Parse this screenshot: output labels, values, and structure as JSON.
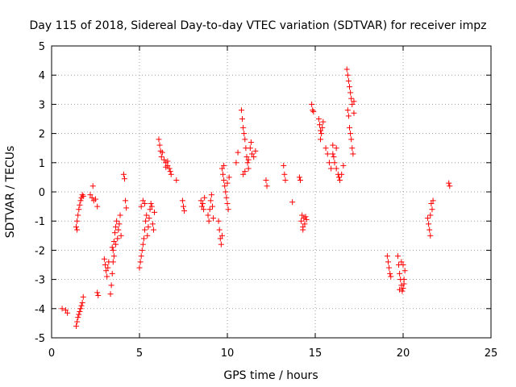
{
  "chart_data": {
    "type": "scatter",
    "title": "Day 115 of 2018, Sidereal Day-to-day VTEC variation (SDTVAR) for receiver impz",
    "xlabel": "GPS time / hours",
    "ylabel": "SDTVAR / TECUs",
    "xlim": [
      0,
      25
    ],
    "ylim": [
      -5,
      5
    ],
    "xticks": [
      "0",
      "5",
      "10",
      "15",
      "20",
      "25"
    ],
    "yticks": [
      "-5",
      "-4",
      "-3",
      "-2",
      "-1",
      "0",
      "1",
      "2",
      "3",
      "4",
      "5"
    ],
    "grid": true,
    "marker": "plus",
    "color": "#ff0000",
    "series": [
      {
        "name": "SDTVAR",
        "points": [
          [
            0.6,
            -4.0
          ],
          [
            0.8,
            -4.05
          ],
          [
            0.9,
            -4.15
          ],
          [
            1.4,
            -4.6
          ],
          [
            1.45,
            -4.45
          ],
          [
            1.5,
            -4.3
          ],
          [
            1.55,
            -4.2
          ],
          [
            1.6,
            -4.1
          ],
          [
            1.65,
            -4.0
          ],
          [
            1.7,
            -3.9
          ],
          [
            1.75,
            -3.8
          ],
          [
            1.8,
            -3.6
          ],
          [
            1.4,
            -1.2
          ],
          [
            1.45,
            -1.0
          ],
          [
            1.5,
            -0.8
          ],
          [
            1.55,
            -0.6
          ],
          [
            1.6,
            -0.45
          ],
          [
            1.65,
            -0.3
          ],
          [
            1.7,
            -0.2
          ],
          [
            1.75,
            -0.1
          ],
          [
            1.8,
            -0.15
          ],
          [
            1.45,
            -1.3
          ],
          [
            2.2,
            -0.1
          ],
          [
            2.3,
            -0.2
          ],
          [
            2.35,
            0.2
          ],
          [
            2.4,
            -0.3
          ],
          [
            2.5,
            -0.25
          ],
          [
            2.6,
            -0.5
          ],
          [
            2.6,
            -3.45
          ],
          [
            2.65,
            -3.55
          ],
          [
            3.0,
            -2.3
          ],
          [
            3.05,
            -2.5
          ],
          [
            3.1,
            -2.7
          ],
          [
            3.15,
            -2.9
          ],
          [
            3.2,
            -2.6
          ],
          [
            3.25,
            -2.4
          ],
          [
            3.35,
            -3.5
          ],
          [
            3.4,
            -3.2
          ],
          [
            3.45,
            -2.8
          ],
          [
            3.5,
            -2.4
          ],
          [
            3.5,
            -2.0
          ],
          [
            3.55,
            -1.7
          ],
          [
            3.6,
            -1.4
          ],
          [
            3.65,
            -1.2
          ],
          [
            3.7,
            -1.0
          ],
          [
            3.45,
            -1.9
          ],
          [
            3.55,
            -2.2
          ],
          [
            3.65,
            -1.8
          ],
          [
            3.75,
            -1.6
          ],
          [
            3.8,
            -1.3
          ],
          [
            3.85,
            -1.1
          ],
          [
            3.9,
            -0.8
          ],
          [
            3.95,
            -1.5
          ],
          [
            4.1,
            0.6
          ],
          [
            4.15,
            0.45
          ],
          [
            4.2,
            -0.3
          ],
          [
            4.25,
            -0.55
          ],
          [
            5.0,
            -2.6
          ],
          [
            5.05,
            -2.4
          ],
          [
            5.1,
            -2.2
          ],
          [
            5.15,
            -2.0
          ],
          [
            5.2,
            -1.8
          ],
          [
            5.25,
            -1.6
          ],
          [
            5.3,
            -1.3
          ],
          [
            5.1,
            -0.5
          ],
          [
            5.2,
            -0.3
          ],
          [
            5.3,
            -0.4
          ],
          [
            5.35,
            -1.0
          ],
          [
            5.4,
            -0.8
          ],
          [
            5.45,
            -1.5
          ],
          [
            5.5,
            -1.2
          ],
          [
            5.55,
            -0.9
          ],
          [
            5.6,
            -0.6
          ],
          [
            5.65,
            -0.4
          ],
          [
            5.7,
            -0.5
          ],
          [
            5.75,
            -1.1
          ],
          [
            5.8,
            -1.3
          ],
          [
            5.85,
            -0.7
          ],
          [
            6.1,
            1.8
          ],
          [
            6.15,
            1.6
          ],
          [
            6.2,
            1.4
          ],
          [
            6.25,
            1.2
          ],
          [
            6.3,
            1.35
          ],
          [
            6.4,
            1.1
          ],
          [
            6.5,
            1.0
          ],
          [
            6.6,
            0.9
          ],
          [
            6.7,
            0.8
          ],
          [
            6.75,
            0.7
          ],
          [
            6.8,
            0.6
          ],
          [
            6.5,
            0.85
          ],
          [
            6.6,
            1.05
          ],
          [
            7.1,
            0.4
          ],
          [
            7.45,
            -0.3
          ],
          [
            7.5,
            -0.5
          ],
          [
            7.55,
            -0.65
          ],
          [
            8.5,
            -0.3
          ],
          [
            8.55,
            -0.5
          ],
          [
            8.6,
            -0.4
          ],
          [
            8.65,
            -0.6
          ],
          [
            8.7,
            -0.2
          ],
          [
            8.9,
            -0.8
          ],
          [
            8.95,
            -1.0
          ],
          [
            9.0,
            -0.6
          ],
          [
            9.05,
            -0.3
          ],
          [
            9.1,
            -0.1
          ],
          [
            9.15,
            -0.5
          ],
          [
            9.2,
            -0.9
          ],
          [
            9.5,
            -1.0
          ],
          [
            9.55,
            -1.3
          ],
          [
            9.6,
            -1.6
          ],
          [
            9.65,
            -1.8
          ],
          [
            9.7,
            -1.5
          ],
          [
            9.7,
            0.8
          ],
          [
            9.75,
            0.6
          ],
          [
            9.8,
            0.4
          ],
          [
            9.85,
            0.2
          ],
          [
            9.9,
            0.0
          ],
          [
            9.95,
            -0.2
          ],
          [
            10.0,
            -0.4
          ],
          [
            10.05,
            -0.6
          ],
          [
            9.8,
            0.9
          ],
          [
            10.0,
            0.3
          ],
          [
            10.1,
            0.5
          ],
          [
            10.5,
            1.0
          ],
          [
            10.6,
            1.35
          ],
          [
            10.8,
            2.8
          ],
          [
            10.85,
            2.5
          ],
          [
            10.9,
            2.2
          ],
          [
            10.95,
            2.0
          ],
          [
            11.0,
            1.8
          ],
          [
            11.05,
            1.5
          ],
          [
            11.1,
            1.2
          ],
          [
            11.15,
            1.0
          ],
          [
            11.2,
            0.8
          ],
          [
            10.9,
            0.6
          ],
          [
            11.0,
            0.7
          ],
          [
            11.3,
            1.5
          ],
          [
            11.4,
            1.3
          ],
          [
            11.5,
            1.2
          ],
          [
            11.6,
            1.4
          ],
          [
            11.2,
            1.1
          ],
          [
            11.35,
            1.7
          ],
          [
            12.2,
            0.4
          ],
          [
            12.25,
            0.2
          ],
          [
            13.2,
            0.9
          ],
          [
            13.25,
            0.6
          ],
          [
            13.3,
            0.4
          ],
          [
            13.7,
            -0.35
          ],
          [
            14.1,
            0.5
          ],
          [
            14.15,
            0.4
          ],
          [
            14.2,
            -1.0
          ],
          [
            14.25,
            -0.8
          ],
          [
            14.3,
            -1.2
          ],
          [
            14.35,
            -0.9
          ],
          [
            14.4,
            -1.1
          ],
          [
            14.45,
            -0.85
          ],
          [
            14.5,
            -0.95
          ],
          [
            14.3,
            -1.3
          ],
          [
            14.8,
            3.0
          ],
          [
            14.85,
            2.8
          ],
          [
            14.9,
            2.75
          ],
          [
            15.2,
            2.5
          ],
          [
            15.25,
            2.3
          ],
          [
            15.3,
            2.1
          ],
          [
            15.35,
            2.0
          ],
          [
            15.4,
            2.2
          ],
          [
            15.45,
            2.4
          ],
          [
            15.3,
            1.8
          ],
          [
            15.6,
            1.5
          ],
          [
            15.7,
            1.3
          ],
          [
            15.8,
            1.0
          ],
          [
            15.9,
            0.8
          ],
          [
            16.0,
            1.6
          ],
          [
            16.05,
            1.2
          ],
          [
            16.1,
            1.0
          ],
          [
            16.2,
            0.8
          ],
          [
            16.3,
            0.6
          ],
          [
            16.35,
            0.5
          ],
          [
            16.4,
            0.4
          ],
          [
            16.5,
            0.6
          ],
          [
            16.6,
            0.9
          ],
          [
            16.2,
            1.5
          ],
          [
            16.0,
            1.3
          ],
          [
            16.8,
            4.2
          ],
          [
            16.85,
            4.0
          ],
          [
            16.9,
            3.8
          ],
          [
            16.95,
            3.6
          ],
          [
            17.0,
            3.4
          ],
          [
            17.05,
            3.2
          ],
          [
            17.1,
            3.0
          ],
          [
            16.85,
            2.8
          ],
          [
            16.9,
            2.6
          ],
          [
            16.95,
            2.2
          ],
          [
            17.0,
            2.0
          ],
          [
            17.05,
            1.8
          ],
          [
            17.1,
            1.5
          ],
          [
            17.15,
            1.3
          ],
          [
            17.2,
            2.7
          ],
          [
            17.2,
            3.1
          ],
          [
            19.1,
            -2.2
          ],
          [
            19.15,
            -2.4
          ],
          [
            19.2,
            -2.6
          ],
          [
            19.25,
            -2.8
          ],
          [
            19.3,
            -2.9
          ],
          [
            19.7,
            -2.2
          ],
          [
            19.75,
            -2.5
          ],
          [
            19.8,
            -2.8
          ],
          [
            19.85,
            -3.0
          ],
          [
            19.9,
            -3.2
          ],
          [
            19.95,
            -3.4
          ],
          [
            20.0,
            -3.3
          ],
          [
            20.05,
            -3.0
          ],
          [
            20.1,
            -2.7
          ],
          [
            20.0,
            -2.5
          ],
          [
            19.9,
            -2.4
          ],
          [
            19.8,
            -3.35
          ],
          [
            20.05,
            -3.15
          ],
          [
            21.4,
            -0.9
          ],
          [
            21.45,
            -1.1
          ],
          [
            21.5,
            -1.3
          ],
          [
            21.55,
            -1.5
          ],
          [
            21.6,
            -0.4
          ],
          [
            21.65,
            -0.6
          ],
          [
            21.7,
            -0.3
          ],
          [
            21.55,
            -0.8
          ],
          [
            22.6,
            0.3
          ],
          [
            22.65,
            0.2
          ]
        ]
      }
    ]
  }
}
